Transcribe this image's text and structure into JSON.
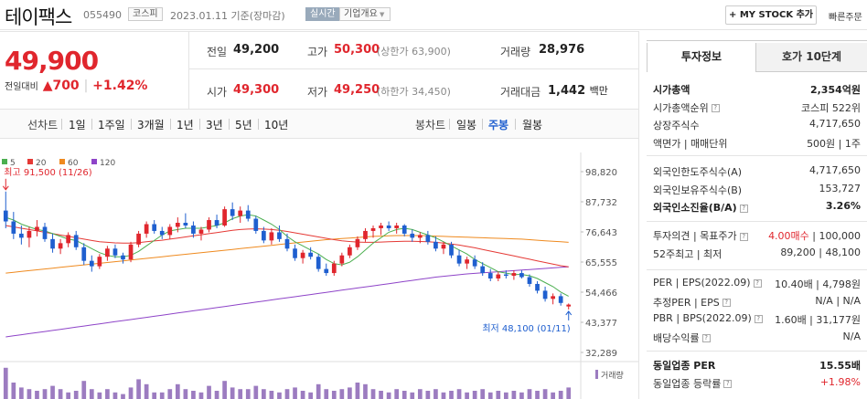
{
  "header": {
    "stock_name": "테이팩스",
    "stock_code": "055490",
    "market_badge": "코스피",
    "date_text": "2023.01.11 기준(장마감)",
    "realtime_badge": "실시간",
    "company_menu": "기업개요",
    "mystock_button": "+ MY STOCK 추가",
    "quick_link": "빠른주문"
  },
  "price": {
    "current": "49,900",
    "change_label": "전일대비",
    "change_value": "▲700",
    "change_pct": "+1.42%"
  },
  "quote": {
    "prev_close_label": "전일",
    "prev_close": "49,200",
    "high_label": "고가",
    "high": "50,300",
    "upper_limit": "(상한가 63,900)",
    "volume_label": "거래량",
    "volume": "28,976",
    "open_label": "시가",
    "open": "49,300",
    "low_label": "저가",
    "low": "49,250",
    "lower_limit": "(하한가 34,450)",
    "amount_label": "거래대금",
    "amount": "1,442",
    "amount_unit": "백만"
  },
  "periods": {
    "line_label": "선차트",
    "line_items": [
      "1일",
      "1주일",
      "3개월",
      "1년",
      "3년",
      "5년",
      "10년"
    ],
    "candle_label": "봉차트",
    "candle_items": [
      "일봉",
      "주봉",
      "월봉"
    ],
    "selected": "주봉"
  },
  "chart_data": {
    "type": "candlestick",
    "legend": [
      {
        "name": "5",
        "color": "#4caf50"
      },
      {
        "name": "20",
        "color": "#e53935"
      },
      {
        "name": "60",
        "color": "#ef8a1f"
      },
      {
        "name": "120",
        "color": "#8e44c8"
      }
    ],
    "y_ticks": [
      "98,820",
      "87,732",
      "76,643",
      "65,555",
      "54,466",
      "43,377",
      "32,289"
    ],
    "ylim": [
      32289,
      98820
    ],
    "high_annotation": "최고 91,500 (11/26)",
    "low_annotation": "최저 48,100 (01/11)",
    "volume_label": "거래량",
    "up_color": "#e0262d",
    "down_color": "#1f5fcf",
    "candles": [
      [
        84500,
        91500,
        78000,
        80500
      ],
      [
        80500,
        84000,
        74000,
        76000
      ],
      [
        76000,
        79000,
        72000,
        74500
      ],
      [
        74500,
        78500,
        71000,
        77000
      ],
      [
        77000,
        81000,
        75000,
        78500
      ],
      [
        78500,
        80000,
        73000,
        74000
      ],
      [
        74000,
        76000,
        69000,
        70500
      ],
      [
        70500,
        74000,
        68500,
        72500
      ],
      [
        72500,
        76500,
        71000,
        75500
      ],
      [
        75500,
        77000,
        70000,
        71000
      ],
      [
        71000,
        72500,
        64500,
        66000
      ],
      [
        66000,
        68000,
        62000,
        64000
      ],
      [
        64000,
        68500,
        63000,
        67500
      ],
      [
        67500,
        71500,
        66000,
        70500
      ],
      [
        70500,
        72000,
        67000,
        68000
      ],
      [
        68000,
        69000,
        65000,
        66500
      ],
      [
        66500,
        73000,
        65500,
        72000
      ],
      [
        72000,
        77000,
        71000,
        76000
      ],
      [
        76000,
        80500,
        74500,
        79500
      ],
      [
        79500,
        81000,
        76000,
        77000
      ],
      [
        77000,
        78500,
        74000,
        75500
      ],
      [
        75500,
        79500,
        74000,
        78500
      ],
      [
        78500,
        82000,
        76500,
        80000
      ],
      [
        80000,
        83500,
        78000,
        79000
      ],
      [
        79000,
        80500,
        74500,
        76000
      ],
      [
        76000,
        78500,
        73500,
        77500
      ],
      [
        77500,
        82000,
        76500,
        81000
      ],
      [
        81000,
        83000,
        78000,
        79000
      ],
      [
        79000,
        86000,
        78500,
        85000
      ],
      [
        85000,
        87500,
        81000,
        82500
      ],
      [
        82500,
        86000,
        80000,
        84500
      ],
      [
        84500,
        86500,
        80500,
        81500
      ],
      [
        81500,
        82500,
        76000,
        77000
      ],
      [
        77000,
        78500,
        72500,
        73500
      ],
      [
        73500,
        78000,
        72000,
        76500
      ],
      [
        76500,
        79000,
        73000,
        74000
      ],
      [
        74000,
        76000,
        69500,
        70500
      ],
      [
        70500,
        72000,
        66000,
        67000
      ],
      [
        67000,
        70000,
        65000,
        69000
      ],
      [
        69000,
        71000,
        66500,
        67500
      ],
      [
        67500,
        68500,
        62000,
        63000
      ],
      [
        63000,
        65000,
        60500,
        61500
      ],
      [
        61500,
        66000,
        60500,
        65000
      ],
      [
        65000,
        69000,
        64000,
        68000
      ],
      [
        68000,
        72000,
        67000,
        71000
      ],
      [
        71000,
        75000,
        70000,
        74000
      ],
      [
        74000,
        78000,
        73000,
        77000
      ],
      [
        77000,
        79000,
        74500,
        78000
      ],
      [
        78000,
        80000,
        75500,
        79000
      ],
      [
        79000,
        80500,
        77000,
        78000
      ],
      [
        78000,
        80000,
        76000,
        79000
      ],
      [
        79000,
        79500,
        75000,
        76000
      ],
      [
        76000,
        77500,
        73000,
        74500
      ],
      [
        74500,
        76500,
        72500,
        75500
      ],
      [
        75500,
        77000,
        72000,
        73000
      ],
      [
        73000,
        75000,
        69500,
        70500
      ],
      [
        70500,
        73000,
        68500,
        72000
      ],
      [
        72000,
        73000,
        67000,
        68000
      ],
      [
        68000,
        70000,
        64000,
        65000
      ],
      [
        65000,
        67500,
        63000,
        66500
      ],
      [
        66500,
        68000,
        63000,
        64000
      ],
      [
        64000,
        65500,
        60500,
        61500
      ],
      [
        61500,
        63000,
        58500,
        59500
      ],
      [
        59500,
        62000,
        58500,
        61000
      ],
      [
        61000,
        62500,
        59500,
        60500
      ],
      [
        60500,
        62500,
        59000,
        61500
      ],
      [
        61500,
        62500,
        59500,
        60000
      ],
      [
        60000,
        61000,
        56500,
        57500
      ],
      [
        57500,
        58500,
        54000,
        55000
      ],
      [
        55000,
        56500,
        51000,
        52000
      ],
      [
        52000,
        54000,
        50000,
        53000
      ],
      [
        53000,
        54000,
        49500,
        50500
      ],
      [
        49200,
        50300,
        48100,
        49900
      ]
    ],
    "ma5": [
      82000,
      81000,
      79500,
      78500,
      77500,
      77000,
      76000,
      75000,
      74000,
      73500,
      72000,
      70500,
      69000,
      68000,
      67500,
      67500,
      68000,
      69500,
      71500,
      73500,
      75500,
      77000,
      77500,
      78000,
      78000,
      78000,
      78500,
      79000,
      80000,
      81500,
      82500,
      83000,
      82500,
      81000,
      79500,
      77500,
      75000,
      73000,
      71500,
      70000,
      68500,
      66500,
      65000,
      64500,
      65500,
      67500,
      70000,
      72500,
      74500,
      76500,
      77500,
      78000,
      77500,
      76500,
      75500,
      74500,
      73000,
      71500,
      70000,
      68500,
      66500,
      65000,
      63500,
      62000,
      61500,
      61000,
      61000,
      60500,
      59500,
      58000,
      56500,
      54500,
      53000
    ],
    "ma20": [
      79000,
      78500,
      78000,
      77500,
      77000,
      76500,
      76000,
      75500,
      75000,
      74500,
      74000,
      73500,
      73000,
      72800,
      72600,
      72500,
      72500,
      72700,
      73000,
      73300,
      73600,
      74000,
      74400,
      74800,
      75200,
      75600,
      76000,
      76400,
      76800,
      77200,
      77500,
      77700,
      77800,
      77700,
      77500,
      77200,
      76800,
      76300,
      75800,
      75300,
      74800,
      74300,
      73800,
      73400,
      73100,
      72900,
      72800,
      72800,
      72900,
      73000,
      73100,
      73200,
      73200,
      73100,
      73000,
      72800,
      72500,
      72200,
      71800,
      71300,
      70800,
      70200,
      69600,
      69000,
      68400,
      67800,
      67200,
      66600,
      66000,
      65400,
      64800,
      64200,
      63800
    ],
    "ma60": [
      61500,
      61800,
      62100,
      62400,
      62700,
      63000,
      63300,
      63600,
      63900,
      64200,
      64500,
      64800,
      65100,
      65400,
      65700,
      66000,
      66300,
      66600,
      66900,
      67200,
      67500,
      67800,
      68100,
      68400,
      68700,
      69000,
      69300,
      69600,
      69900,
      70200,
      70500,
      70800,
      71100,
      71400,
      71700,
      72000,
      72300,
      72600,
      72900,
      73200,
      73500,
      73800,
      74000,
      74200,
      74400,
      74600,
      74800,
      75000,
      75100,
      75200,
      75300,
      75300,
      75300,
      75300,
      75200,
      75100,
      75000,
      74900,
      74800,
      74700,
      74600,
      74500,
      74400,
      74300,
      74200,
      74100,
      74000,
      73800,
      73600,
      73400,
      73200,
      73000,
      72800
    ],
    "ma120": [
      38000,
      38400,
      38800,
      39200,
      39600,
      40000,
      40400,
      40800,
      41200,
      41600,
      42000,
      42400,
      42800,
      43200,
      43600,
      44000,
      44400,
      44800,
      45200,
      45600,
      46000,
      46400,
      46800,
      47200,
      47600,
      48000,
      48400,
      48800,
      49200,
      49600,
      50000,
      50400,
      50800,
      51200,
      51600,
      52000,
      52400,
      52800,
      53200,
      53600,
      54000,
      54400,
      54800,
      55200,
      55600,
      56000,
      56400,
      56800,
      57200,
      57600,
      58000,
      58400,
      58800,
      59200,
      59600,
      60000,
      60300,
      60600,
      60900,
      61200,
      61400,
      61600,
      61800,
      62000,
      62200,
      62400,
      62600,
      62800,
      63000,
      63200,
      63400,
      63600,
      63800
    ],
    "volume": [
      0.95,
      0.5,
      0.35,
      0.3,
      0.25,
      0.3,
      0.4,
      0.3,
      0.2,
      0.25,
      0.55,
      0.3,
      0.2,
      0.3,
      0.2,
      0.15,
      0.35,
      0.6,
      0.45,
      0.2,
      0.2,
      0.3,
      0.45,
      0.3,
      0.25,
      0.2,
      0.4,
      0.25,
      0.55,
      0.35,
      0.3,
      0.3,
      0.4,
      0.3,
      0.25,
      0.2,
      0.3,
      0.35,
      0.25,
      0.2,
      0.45,
      0.3,
      0.25,
      0.3,
      0.35,
      0.5,
      0.45,
      0.3,
      0.25,
      0.2,
      0.3,
      0.25,
      0.2,
      0.3,
      0.25,
      0.3,
      0.2,
      0.25,
      0.3,
      0.2,
      0.25,
      0.3,
      0.2,
      0.25,
      0.2,
      0.25,
      0.2,
      0.3,
      0.25,
      0.3,
      0.2,
      0.25,
      0.35
    ]
  },
  "right_panel": {
    "tab_invest": "투자정보",
    "tab_orderbook": "호가 10단계",
    "rows1": [
      {
        "label": "시가총액",
        "value": "2,354억원",
        "bold": true
      },
      {
        "label": "시가총액순위",
        "value": "코스피 522위"
      },
      {
        "label": "상장주식수",
        "value": "4,717,650"
      },
      {
        "label": "액면가 | 매매단위",
        "value": "500원 | 1주"
      }
    ],
    "rows2": [
      {
        "label": "외국인한도주식수(A)",
        "value": "4,717,650"
      },
      {
        "label": "외국인보유주식수(B)",
        "value": "153,727"
      },
      {
        "label": "외국인소진율(B/A)",
        "value": "3.26%",
        "bold": true
      }
    ],
    "rows3": [
      {
        "label": "투자의견 | 목표주가",
        "value_red": "4.00매수",
        "value": "| 100,000"
      },
      {
        "label": "52주최고 | 최저",
        "value": "89,200 | 48,100"
      }
    ],
    "rows4": [
      {
        "label": "PER | EPS(2022.09)",
        "value": "10.40배 | 4,798원"
      },
      {
        "label": "추정PER | EPS",
        "value": "N/A | N/A"
      },
      {
        "label": "PBR | BPS(2022.09)",
        "value": "1.60배 | 31,177원"
      },
      {
        "label": "배당수익률",
        "value": "N/A"
      }
    ],
    "rows5": [
      {
        "label": "동일업종 PER",
        "value": "15.55배",
        "bold": true
      },
      {
        "label": "동일업종 등락률",
        "value": "+1.98%",
        "red": true
      }
    ]
  }
}
